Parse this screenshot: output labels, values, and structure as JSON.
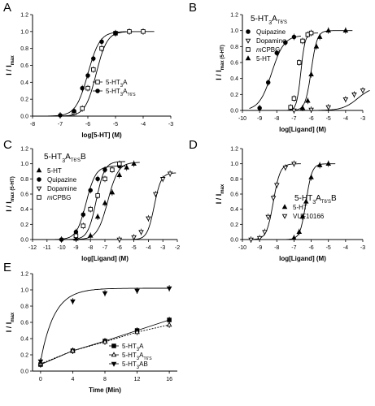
{
  "chart_data": [
    {
      "panel_letter": "A",
      "type": "scatter",
      "xlabel": "log[5-HT] (M)",
      "ylabel": "I / I",
      "ylabel_sub": "max",
      "xlim": [
        -8,
        -3
      ],
      "ylim": [
        0,
        1.2
      ],
      "xticks": [
        "-8",
        "-7",
        "-6",
        "-5",
        "-4",
        "-3"
      ],
      "yticks": [
        "0.0",
        "0.2",
        "0.4",
        "0.6",
        "0.8",
        "1.0",
        "1.2"
      ],
      "legend": "bottom-right",
      "series": [
        {
          "name": "5-HT3A",
          "name_main": "5-HT",
          "name_sub": "3",
          "name_tail": "A",
          "marker": "square-open",
          "ec50_log": -5.7,
          "hill": 2.2,
          "x": [
            -6.5,
            -6.2,
            -6.0,
            -5.8,
            -5.5,
            -5.0,
            -4.5,
            -4.0
          ],
          "y": [
            0.04,
            0.09,
            0.33,
            0.55,
            0.8,
            0.98,
            1.0,
            1.0
          ]
        },
        {
          "name": "5-HT3AT6'S",
          "name_main": "5-HT",
          "name_sub": "3",
          "name_tail": "A",
          "name_sub2": "T6'S",
          "marker": "circle-filled",
          "ec50_log": -6.0,
          "hill": 2.0,
          "x": [
            -7.0,
            -6.5,
            -6.2,
            -6.0,
            -5.8,
            -5.5,
            -5.0
          ],
          "y": [
            0.01,
            0.06,
            0.33,
            0.48,
            0.68,
            0.88,
            0.98
          ]
        }
      ]
    },
    {
      "panel_letter": "B",
      "type": "scatter",
      "title_main": "5-HT",
      "title_sub": "3",
      "title_tail": "A",
      "title_sub2": "T6'S",
      "xlabel": "log[Ligand] (M)",
      "ylabel": "I / I",
      "ylabel_sub": "max (5-HT)",
      "xlim": [
        -10,
        -3
      ],
      "ylim": [
        0,
        1.2
      ],
      "xticks": [
        "-10",
        "-9",
        "-8",
        "-7",
        "-6",
        "-5",
        "-4",
        "-3"
      ],
      "yticks": [
        "0.0",
        "0.2",
        "0.4",
        "0.6",
        "0.8",
        "1.0",
        "1.2"
      ],
      "legend": "top-left",
      "series": [
        {
          "name": "Quipazine",
          "marker": "circle-filled",
          "ec50_log": -8.3,
          "hill": 1.2,
          "top": 0.94,
          "x": [
            -9.0,
            -8.5,
            -8.0,
            -7.5,
            -7.0
          ],
          "y": [
            0.03,
            0.35,
            0.72,
            0.85,
            0.92
          ]
        },
        {
          "name": "Dopamine",
          "marker": "triangle-down-open",
          "ec50_log": -3.3,
          "hill": 1.0,
          "top": 0.3,
          "x": [
            -7.0,
            -6.0,
            -5.0,
            -4.0,
            -3.5,
            -3.0
          ],
          "y": [
            0.0,
            0.01,
            0.04,
            0.14,
            0.2,
            0.25
          ]
        },
        {
          "name": "mCPBG",
          "name_plain": "CPBG",
          "name_italic": "m",
          "marker": "square-open",
          "ec50_log": -6.6,
          "hill": 3.5,
          "top": 0.97,
          "x": [
            -7.2,
            -7.0,
            -6.7,
            -6.5,
            -6.2,
            -6.0
          ],
          "y": [
            0.04,
            0.15,
            0.6,
            0.87,
            0.95,
            0.97
          ]
        },
        {
          "name": "5-HT",
          "marker": "triangle-up-filled",
          "ec50_log": -6.0,
          "hill": 2.5,
          "top": 1.0,
          "x": [
            -6.5,
            -6.2,
            -6.0,
            -5.7,
            -5.5,
            -5.0,
            -4.0
          ],
          "y": [
            0.03,
            0.12,
            0.45,
            0.8,
            0.92,
            1.0,
            1.0
          ]
        }
      ]
    },
    {
      "panel_letter": "C",
      "type": "scatter",
      "title_main": "5-HT",
      "title_sub": "3",
      "title_tail": "A",
      "title_sub2": "T6'S",
      "title_tail2": "B",
      "xlabel": "log[Ligand] (M)",
      "ylabel": "I / I",
      "ylabel_sub": "max (5-HT)",
      "xlim": [
        -12,
        -2
      ],
      "ylim": [
        0,
        1.2
      ],
      "xticks": [
        "-12",
        "-11",
        "-10",
        "-9",
        "-8",
        "-7",
        "-6",
        "-5",
        "-4",
        "-3",
        "-2"
      ],
      "yticks": [
        "0.0",
        "0.2",
        "0.4",
        "0.6",
        "0.8",
        "1.0",
        "1.2"
      ],
      "legend": "top-left",
      "series": [
        {
          "name": "5-HT",
          "marker": "triangle-up-filled",
          "ec50_log": -6.8,
          "hill": 1.2,
          "top": 1.02,
          "x": [
            -9.0,
            -8.0,
            -7.5,
            -7.0,
            -6.5,
            -6.0,
            -5.5,
            -5.0
          ],
          "y": [
            0.01,
            0.05,
            0.3,
            0.48,
            0.62,
            0.85,
            0.95,
            1.0
          ]
        },
        {
          "name": "Quipazine",
          "marker": "circle-filled",
          "ec50_log": -8.3,
          "hill": 1.3,
          "top": 0.97,
          "x": [
            -10.0,
            -9.0,
            -8.5,
            -8.0,
            -7.5,
            -7.0,
            -6.0
          ],
          "y": [
            0.0,
            0.1,
            0.33,
            0.65,
            0.8,
            0.92,
            0.97
          ]
        },
        {
          "name": "Dopamine",
          "marker": "triangle-down-open",
          "ec50_log": -3.6,
          "hill": 1.8,
          "top": 0.88,
          "x": [
            -6.0,
            -5.0,
            -4.5,
            -4.0,
            -3.5,
            -3.0,
            -2.5
          ],
          "y": [
            0.0,
            0.03,
            0.1,
            0.28,
            0.6,
            0.8,
            0.87
          ]
        },
        {
          "name": "mCPBG",
          "name_plain": "CPBG",
          "name_italic": "m",
          "marker": "square-open",
          "ec50_log": -7.6,
          "hill": 1.5,
          "top": 1.03,
          "x": [
            -9.0,
            -8.5,
            -8.0,
            -7.5,
            -7.0,
            -6.5,
            -6.0
          ],
          "y": [
            0.05,
            0.18,
            0.4,
            0.58,
            0.8,
            0.92,
            1.0
          ]
        }
      ]
    },
    {
      "panel_letter": "D",
      "type": "scatter",
      "legend_title_main": "5-HT",
      "legend_title_sub": "3",
      "legend_title_tail": "A",
      "legend_title_sub2": "T6'S",
      "legend_title_tail2": "B",
      "xlabel": "log[Ligand] (M)",
      "ylabel": "I / I",
      "ylabel_sub": "max",
      "xlim": [
        -10,
        -3
      ],
      "ylim": [
        0,
        1.2
      ],
      "xticks": [
        "-10",
        "-9",
        "-8",
        "-7",
        "-6",
        "-5",
        "-4",
        "-3"
      ],
      "yticks": [
        "0.0",
        "0.2",
        "0.4",
        "0.6",
        "0.8",
        "1.0",
        "1.2"
      ],
      "legend": "right",
      "series": [
        {
          "name": "5-HT",
          "marker": "triangle-up-filled",
          "ec50_log": -6.3,
          "hill": 2.5,
          "top": 1.0,
          "x": [
            -7.0,
            -6.7,
            -6.5,
            -6.3,
            -6.0,
            -5.5,
            -5.0
          ],
          "y": [
            0.02,
            0.1,
            0.3,
            0.5,
            0.82,
            0.98,
            1.0
          ]
        },
        {
          "name": "VUF10166",
          "marker": "triangle-down-open",
          "ec50_log": -8.2,
          "hill": 2.2,
          "top": 1.0,
          "x": [
            -9.5,
            -9.0,
            -8.7,
            -8.5,
            -8.2,
            -8.0,
            -7.5,
            -7.0
          ],
          "y": [
            0.0,
            0.02,
            0.1,
            0.3,
            0.55,
            0.72,
            0.95,
            1.0
          ]
        }
      ]
    },
    {
      "panel_letter": "E",
      "type": "scatter",
      "xlabel": "Time (Min)",
      "ylabel": "I / I",
      "ylabel_sub": "max",
      "xlim": [
        -1,
        17
      ],
      "ylim": [
        0,
        1.2
      ],
      "xticks": [
        "0",
        "4",
        "8",
        "12",
        "16"
      ],
      "yticks": [
        "0.0",
        "0.2",
        "0.4",
        "0.6",
        "0.8",
        "1.0",
        "1.2"
      ],
      "legend": "bottom-right",
      "series": [
        {
          "name": "5-HT3A",
          "name_main": "5-HT",
          "name_sub": "3",
          "name_tail": "A",
          "marker": "square-filled",
          "x": [
            0,
            4,
            8,
            12,
            16
          ],
          "y": [
            0.08,
            0.25,
            0.37,
            0.5,
            0.63
          ]
        },
        {
          "name": "5-HT3AT6'S",
          "name_main": "5-HT",
          "name_sub": "3",
          "name_tail": "A",
          "name_sub2": "T6'S",
          "marker": "triangle-up-open",
          "x": [
            0,
            4,
            8,
            12,
            16
          ],
          "y": [
            0.09,
            0.25,
            0.36,
            0.48,
            0.57
          ]
        },
        {
          "name": "5-HT3AB",
          "name_main": "5-HT",
          "name_sub": "3",
          "name_tail": "AB",
          "marker": "triangle-down-filled",
          "x": [
            0,
            4,
            8,
            12,
            16
          ],
          "y": [
            0.12,
            0.86,
            0.96,
            0.99,
            1.02
          ]
        }
      ]
    }
  ]
}
